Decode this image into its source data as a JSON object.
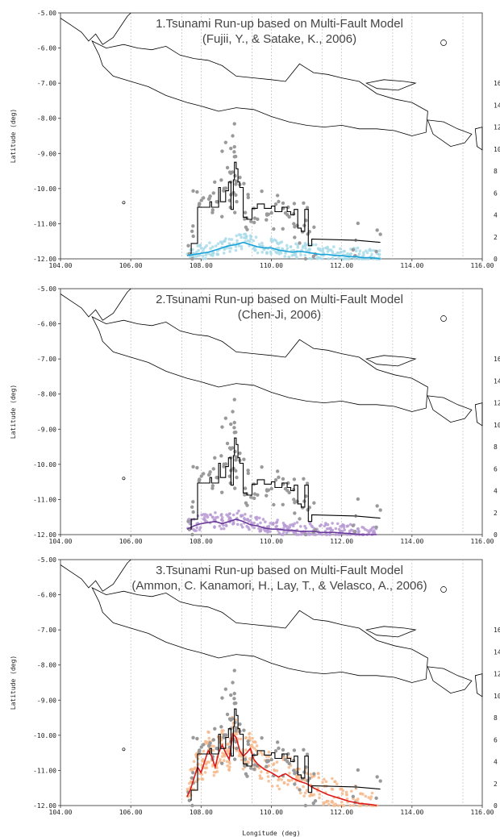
{
  "chart_data": {
    "type": "scatter",
    "xlabel": "Longitude (deg)",
    "ylabel": "Latitude (deg)",
    "xlim": [
      104,
      116
    ],
    "ylim": [
      -12,
      -5
    ],
    "x_ticks": [
      "104.00",
      "106.00",
      "108.00",
      "110.00",
      "112.00",
      "114.00",
      "116.00"
    ],
    "y_ticks": [
      "-5.00",
      "-6.00",
      "-7.00",
      "-8.00",
      "-9.00",
      "-10.00",
      "-11.00",
      "-12.00"
    ],
    "right_ticks": [
      "0",
      "2",
      "4",
      "6",
      "8",
      "10",
      "12",
      "14",
      "16"
    ],
    "grid": true,
    "observed_runup": {
      "color": "#000000",
      "x": [
        107.7,
        107.72,
        107.9,
        108.0,
        108.25,
        108.3,
        108.5,
        108.55,
        108.7,
        108.78,
        108.85,
        108.92,
        108.95,
        109.0,
        109.05,
        109.1,
        109.2,
        109.3,
        109.45,
        109.6,
        109.8,
        110.0,
        110.1,
        110.3,
        110.45,
        110.55,
        110.65,
        110.75,
        110.85,
        110.95,
        111.05,
        111.15,
        112.4,
        113.1
      ],
      "height": [
        0.5,
        1.4,
        4.7,
        4.7,
        5.2,
        4.7,
        6.5,
        5.2,
        6.2,
        7.0,
        4.5,
        7.2,
        8.8,
        8.2,
        7.0,
        6.5,
        3.8,
        3.6,
        4.6,
        5.0,
        4.6,
        4.8,
        4.3,
        4.7,
        4.3,
        4.0,
        4.5,
        2.8,
        2.5,
        4.5,
        1.2,
        1.8,
        1.7,
        1.5
      ]
    },
    "panels": [
      {
        "title_line1": "1.Tsunami Run-up based on Multi-Fault Model",
        "title_line2": "(Fujii, Y., & Satake, K., 2006)",
        "model_color": "#1aa3d9",
        "scatter_color": "#a8dbe9",
        "model_x": [
          107.6,
          107.8,
          108.0,
          108.2,
          108.4,
          108.6,
          108.8,
          109.0,
          109.2,
          109.4,
          109.6,
          109.8,
          110.0,
          110.2,
          110.4,
          110.6,
          110.8,
          111.0,
          111.2,
          111.4,
          111.6,
          111.8,
          112.0,
          112.2,
          112.4,
          112.6,
          112.8,
          113.0,
          113.1
        ],
        "model_height": [
          0.3,
          0.4,
          0.5,
          0.6,
          0.8,
          1.0,
          1.2,
          1.3,
          1.5,
          1.3,
          1.1,
          1.0,
          1.0,
          0.8,
          0.7,
          0.6,
          0.7,
          0.6,
          0.5,
          0.4,
          0.4,
          0.3,
          0.3,
          0.2,
          0.2,
          0.1,
          0.1,
          0.05,
          0.0
        ]
      },
      {
        "title_line1": "2.Tsunami Run-up based on Multi-Fault Model",
        "title_line2": "(Chen-Ji, 2006)",
        "model_color": "#6a3a9a",
        "scatter_color": "#b79ad3",
        "model_x": [
          107.6,
          107.8,
          108.0,
          108.2,
          108.4,
          108.6,
          108.8,
          109.0,
          109.2,
          109.4,
          109.6,
          109.8,
          110.0,
          110.2,
          110.4,
          110.6,
          110.8,
          111.0,
          111.2,
          111.4,
          111.6,
          111.8,
          112.0,
          112.2,
          112.4,
          112.6,
          112.8,
          113.0
        ],
        "model_height": [
          0.5,
          0.8,
          1.0,
          1.1,
          1.2,
          1.0,
          1.2,
          1.4,
          1.2,
          0.9,
          0.8,
          0.6,
          0.5,
          0.5,
          0.4,
          0.4,
          0.3,
          0.3,
          0.3,
          0.2,
          0.2,
          0.2,
          0.15,
          0.1,
          0.05,
          0.0,
          0.0,
          0.0
        ]
      },
      {
        "title_line1": "3.Tsunami Run-up based on Multi-Fault Model",
        "title_line2": "(Ammon, C. Kanamori, H., Lay, T., & Velasco, A., 2006)",
        "model_color": "#dd1a1a",
        "scatter_color": "#f6b98c",
        "model_x": [
          107.6,
          107.7,
          107.8,
          107.9,
          108.0,
          108.1,
          108.2,
          108.3,
          108.4,
          108.5,
          108.6,
          108.7,
          108.8,
          108.9,
          109.0,
          109.1,
          109.2,
          109.3,
          109.4,
          109.5,
          109.6,
          109.8,
          110.0,
          110.2,
          110.4,
          110.6,
          110.8,
          111.0,
          111.2,
          111.4,
          111.6,
          111.8,
          112.0,
          112.2,
          112.5,
          112.8,
          113.0
        ],
        "model_height": [
          0.8,
          1.5,
          2.5,
          3.5,
          3.0,
          4.0,
          5.0,
          4.5,
          3.5,
          4.8,
          5.5,
          4.8,
          4.2,
          6.5,
          6.2,
          5.0,
          4.5,
          4.8,
          5.2,
          4.2,
          3.8,
          3.3,
          3.0,
          2.6,
          2.9,
          2.5,
          2.2,
          2.0,
          1.6,
          1.3,
          1.0,
          0.8,
          0.6,
          0.4,
          0.2,
          0.1,
          0.0
        ]
      }
    ]
  }
}
